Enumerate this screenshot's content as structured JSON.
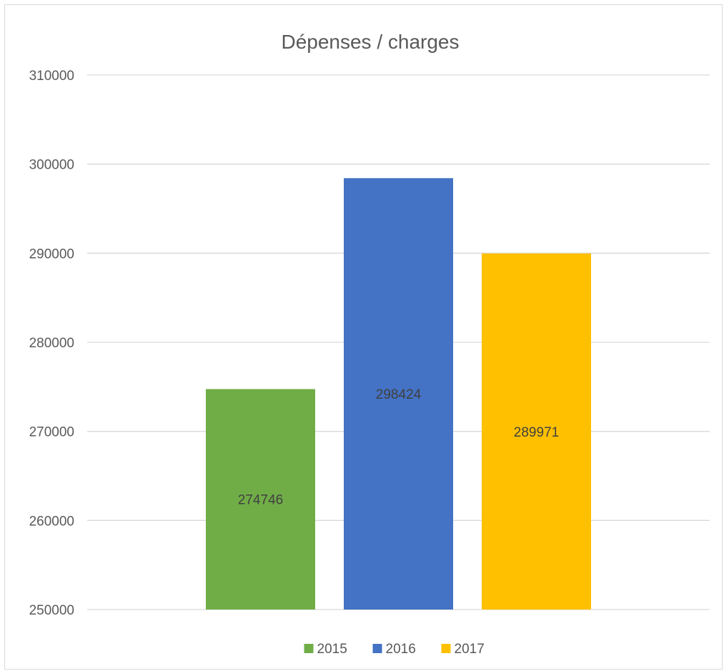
{
  "chart_data": {
    "type": "bar",
    "title": "Dépenses / charges",
    "xlabel": "",
    "ylabel": "",
    "ylim": [
      250000,
      310000
    ],
    "ytick_step": 10000,
    "y_ticks": [
      "250000",
      "260000",
      "270000",
      "280000",
      "290000",
      "300000",
      "310000"
    ],
    "grid": true,
    "legend_position": "bottom",
    "series": [
      {
        "name": "2015",
        "value": 274746,
        "label": "274746",
        "color": "#70ad47"
      },
      {
        "name": "2016",
        "value": 298424,
        "label": "298424",
        "color": "#4472c4"
      },
      {
        "name": "2017",
        "value": 289971,
        "label": "289971",
        "color": "#ffc000"
      }
    ]
  }
}
